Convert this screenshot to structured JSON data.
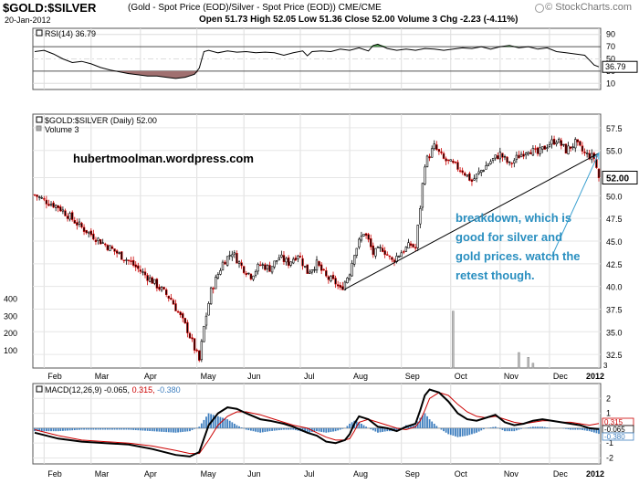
{
  "header": {
    "symbol": "$GOLD:$SILVER",
    "description": "(Gold - Spot Price (EOD)/Silver - Spot Price (EOD))  CME/CME",
    "date": "20-Jan-2012",
    "ohlc": "Open 51.73  High 52.05  Low 51.36  Close 52.00  Volume 3  Chg -2.23 (-4.11%)",
    "brand": "© StockCharts.com",
    "brand_icon": "stockcharts-logo-icon"
  },
  "chart_data": [
    {
      "type": "line",
      "title": "RSI(14) 36.79",
      "ylim": [
        0,
        100
      ],
      "yticks": [
        "90",
        "70",
        "50",
        "30",
        "10"
      ],
      "reference_lines": [
        70,
        50,
        30
      ],
      "last_value_label": "36.79",
      "overbought_fill_color": "#4a9a4a",
      "oversold_fill_color": "#a07070",
      "points": [
        [
          0,
          62
        ],
        [
          4,
          64
        ],
        [
          8,
          58
        ],
        [
          12,
          50
        ],
        [
          16,
          44
        ],
        [
          20,
          46
        ],
        [
          24,
          42
        ],
        [
          28,
          36
        ],
        [
          32,
          32
        ],
        [
          36,
          29
        ],
        [
          40,
          26
        ],
        [
          44,
          24
        ],
        [
          48,
          22
        ],
        [
          52,
          22
        ],
        [
          56,
          20
        ],
        [
          60,
          18
        ],
        [
          64,
          20
        ],
        [
          68,
          25
        ],
        [
          70,
          35
        ],
        [
          72,
          62
        ],
        [
          74,
          64
        ],
        [
          78,
          60
        ],
        [
          82,
          63
        ],
        [
          86,
          61
        ],
        [
          90,
          62
        ],
        [
          94,
          60
        ],
        [
          98,
          61
        ],
        [
          102,
          60
        ],
        [
          106,
          56
        ],
        [
          110,
          60
        ],
        [
          114,
          63
        ],
        [
          116,
          55
        ],
        [
          118,
          62
        ],
        [
          122,
          63
        ],
        [
          126,
          62
        ],
        [
          130,
          66
        ],
        [
          134,
          64
        ],
        [
          138,
          68
        ],
        [
          142,
          63
        ],
        [
          144,
          72
        ],
        [
          146,
          74
        ],
        [
          150,
          67
        ],
        [
          154,
          64
        ],
        [
          158,
          66
        ],
        [
          162,
          64
        ],
        [
          166,
          67
        ],
        [
          170,
          66
        ],
        [
          174,
          64
        ],
        [
          178,
          66
        ],
        [
          182,
          68
        ],
        [
          186,
          67
        ],
        [
          190,
          70
        ],
        [
          194,
          66
        ],
        [
          198,
          70
        ],
        [
          202,
          72
        ],
        [
          206,
          68
        ],
        [
          210,
          70
        ],
        [
          214,
          66
        ],
        [
          218,
          68
        ],
        [
          222,
          62
        ],
        [
          226,
          60
        ],
        [
          230,
          58
        ],
        [
          234,
          56
        ],
        [
          236,
          48
        ],
        [
          238,
          40
        ],
        [
          240,
          37
        ]
      ]
    },
    {
      "type": "candlestick",
      "title": "$GOLD:$SILVER (Daily) 52.00",
      "legend": [
        "$GOLD:$SILVER (Daily) 52.00",
        "Volume 3"
      ],
      "ylim": [
        31,
        59
      ],
      "yticks": [
        "57.5",
        "55.0",
        "52.00",
        "50.0",
        "47.5",
        "45.0",
        "42.5",
        "40.0",
        "37.5",
        "35.0",
        "32.5"
      ],
      "volume_yticks": [
        "400",
        "300",
        "200",
        "100"
      ],
      "volume_last": "3",
      "last_value": 52.0,
      "x_labels": [
        "Feb",
        "Mar",
        "Apr",
        "May",
        "Jun",
        "Jul",
        "Aug",
        "Sep",
        "Oct",
        "Nov",
        "Dec",
        "2012"
      ],
      "price_anchors": [
        [
          0,
          50.1
        ],
        [
          4,
          49.5
        ],
        [
          10,
          48.8
        ],
        [
          20,
          46.5
        ],
        [
          30,
          44.6
        ],
        [
          40,
          42.8
        ],
        [
          50,
          40.6
        ],
        [
          58,
          38.6
        ],
        [
          65,
          35.2
        ],
        [
          70,
          31.8
        ],
        [
          72,
          35.5
        ],
        [
          75,
          39.5
        ],
        [
          80,
          42.6
        ],
        [
          84,
          43.8
        ],
        [
          88,
          42.2
        ],
        [
          92,
          41.2
        ],
        [
          96,
          42.4
        ],
        [
          100,
          42.0
        ],
        [
          104,
          43.2
        ],
        [
          108,
          42.6
        ],
        [
          112,
          43.6
        ],
        [
          116,
          41.6
        ],
        [
          120,
          42.5
        ],
        [
          124,
          41.0
        ],
        [
          128,
          40.4
        ],
        [
          130,
          39.6
        ],
        [
          132,
          40.5
        ],
        [
          134,
          41.6
        ],
        [
          136,
          43.8
        ],
        [
          140,
          46.0
        ],
        [
          142,
          45.0
        ],
        [
          144,
          43.6
        ],
        [
          148,
          44.2
        ],
        [
          152,
          42.8
        ],
        [
          156,
          43.8
        ],
        [
          160,
          44.6
        ],
        [
          162,
          44.2
        ],
        [
          164,
          48.8
        ],
        [
          166,
          53.6
        ],
        [
          170,
          55.4
        ],
        [
          174,
          54.0
        ],
        [
          178,
          53.4
        ],
        [
          182,
          52.8
        ],
        [
          186,
          51.6
        ],
        [
          190,
          52.8
        ],
        [
          194,
          53.8
        ],
        [
          198,
          54.6
        ],
        [
          202,
          53.4
        ],
        [
          206,
          54.4
        ],
        [
          210,
          55.2
        ],
        [
          214,
          54.6
        ],
        [
          218,
          55.6
        ],
        [
          222,
          56.2
        ],
        [
          226,
          55.0
        ],
        [
          230,
          55.8
        ],
        [
          234,
          54.6
        ],
        [
          238,
          54.2
        ],
        [
          240,
          52.0
        ]
      ],
      "volume_spikes": [
        [
          178,
          330
        ],
        [
          206,
          90
        ],
        [
          210,
          62
        ],
        [
          212,
          28
        ]
      ],
      "annotations": [
        {
          "text": "hubertmoolman.wordpress.com",
          "color": "#000000"
        },
        {
          "lines": [
            "breakdown, which is",
            "good for silver and",
            "gold prices. watch the",
            "retest though."
          ],
          "color": "#2a8fc0"
        }
      ],
      "trendline": [
        [
          132,
          39.7
        ],
        [
          240,
          54.7
        ]
      ],
      "arrow": {
        "from": [
          220,
          43.3
        ],
        "to": [
          240,
          54.7
        ],
        "color": "#3aa0d0"
      }
    },
    {
      "type": "line",
      "title": "MACD(12,26,9)",
      "series": [
        {
          "name": "-0.065",
          "color": "#000000"
        },
        {
          "name": "0.315",
          "color": "#cc0000"
        },
        {
          "name": "-0.380",
          "color": "#3f7fbf"
        }
      ],
      "ylim": [
        -2.4,
        3.0
      ],
      "yticks": [
        "2",
        "1",
        "0",
        "-1",
        "-2"
      ],
      "value_labels": [
        "0.315",
        "-0.065",
        "-0.380"
      ],
      "macd": [
        [
          0,
          -0.3
        ],
        [
          10,
          -0.7
        ],
        [
          20,
          -0.9
        ],
        [
          30,
          -1.0
        ],
        [
          40,
          -1.1
        ],
        [
          50,
          -1.4
        ],
        [
          60,
          -1.8
        ],
        [
          66,
          -1.9
        ],
        [
          70,
          -1.6
        ],
        [
          74,
          0.2
        ],
        [
          78,
          1.0
        ],
        [
          82,
          1.4
        ],
        [
          86,
          1.3
        ],
        [
          90,
          1.0
        ],
        [
          96,
          0.6
        ],
        [
          100,
          0.5
        ],
        [
          106,
          0.3
        ],
        [
          110,
          0.1
        ],
        [
          116,
          -0.3
        ],
        [
          120,
          -0.5
        ],
        [
          124,
          -0.9
        ],
        [
          128,
          -1.0
        ],
        [
          132,
          -0.8
        ],
        [
          134,
          -0.4
        ],
        [
          136,
          0.3
        ],
        [
          138,
          0.8
        ],
        [
          142,
          0.6
        ],
        [
          146,
          0.1
        ],
        [
          150,
          0.0
        ],
        [
          154,
          -0.2
        ],
        [
          158,
          0.1
        ],
        [
          162,
          0.3
        ],
        [
          164,
          1.2
        ],
        [
          166,
          2.2
        ],
        [
          168,
          2.6
        ],
        [
          172,
          2.4
        ],
        [
          176,
          1.8
        ],
        [
          180,
          1.0
        ],
        [
          184,
          0.6
        ],
        [
          188,
          0.5
        ],
        [
          192,
          0.7
        ],
        [
          196,
          0.9
        ],
        [
          200,
          0.4
        ],
        [
          204,
          0.2
        ],
        [
          208,
          0.3
        ],
        [
          212,
          0.5
        ],
        [
          216,
          0.6
        ],
        [
          220,
          0.5
        ],
        [
          224,
          0.4
        ],
        [
          228,
          0.3
        ],
        [
          232,
          0.2
        ],
        [
          236,
          0.0
        ],
        [
          240,
          -0.065
        ]
      ],
      "signal": [
        [
          0,
          -0.1
        ],
        [
          10,
          -0.5
        ],
        [
          20,
          -0.8
        ],
        [
          30,
          -0.9
        ],
        [
          40,
          -1.0
        ],
        [
          50,
          -1.2
        ],
        [
          60,
          -1.5
        ],
        [
          66,
          -1.7
        ],
        [
          70,
          -1.7
        ],
        [
          74,
          -0.8
        ],
        [
          78,
          0.2
        ],
        [
          82,
          0.8
        ],
        [
          86,
          1.1
        ],
        [
          90,
          1.1
        ],
        [
          96,
          0.9
        ],
        [
          100,
          0.7
        ],
        [
          106,
          0.4
        ],
        [
          110,
          0.2
        ],
        [
          116,
          0.0
        ],
        [
          120,
          -0.3
        ],
        [
          124,
          -0.6
        ],
        [
          128,
          -0.8
        ],
        [
          132,
          -0.8
        ],
        [
          134,
          -0.7
        ],
        [
          136,
          -0.2
        ],
        [
          138,
          0.4
        ],
        [
          142,
          0.6
        ],
        [
          146,
          0.4
        ],
        [
          150,
          0.2
        ],
        [
          154,
          0.0
        ],
        [
          158,
          -0.1
        ],
        [
          162,
          0.1
        ],
        [
          164,
          0.5
        ],
        [
          166,
          1.2
        ],
        [
          168,
          2.0
        ],
        [
          172,
          2.4
        ],
        [
          176,
          2.2
        ],
        [
          180,
          1.6
        ],
        [
          184,
          1.1
        ],
        [
          188,
          0.8
        ],
        [
          192,
          0.7
        ],
        [
          196,
          0.8
        ],
        [
          200,
          0.6
        ],
        [
          204,
          0.4
        ],
        [
          208,
          0.3
        ],
        [
          212,
          0.4
        ],
        [
          216,
          0.5
        ],
        [
          220,
          0.5
        ],
        [
          224,
          0.4
        ],
        [
          228,
          0.4
        ],
        [
          232,
          0.3
        ],
        [
          236,
          0.2
        ],
        [
          240,
          0.315
        ]
      ]
    }
  ],
  "x_axis_labels": [
    "Feb",
    "Mar",
    "Apr",
    "May",
    "Jun",
    "Jul",
    "Aug",
    "Sep",
    "Oct",
    "Nov",
    "Dec",
    "2012"
  ]
}
